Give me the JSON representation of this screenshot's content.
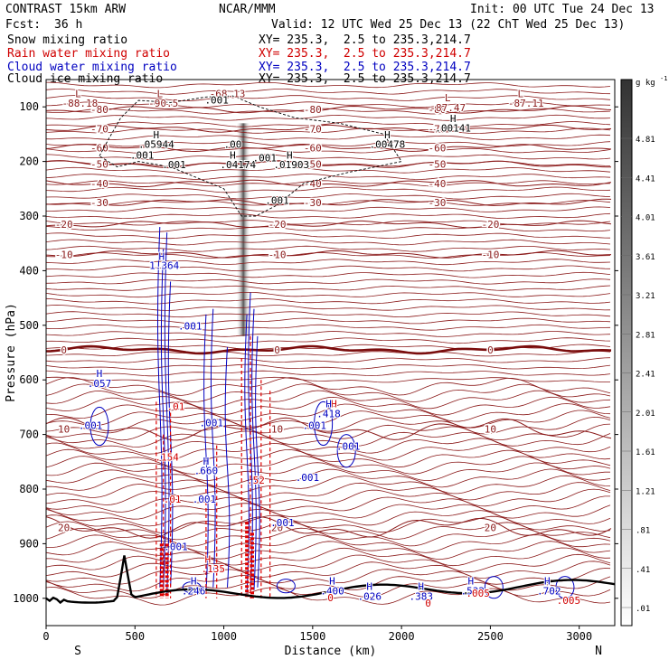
{
  "header": {
    "model": "CONTRAST 15km ARW",
    "org": "NCAR/MMM",
    "init": "Init: 00 UTC Tue 24 Dec 13",
    "fcst_label": "Fcst:",
    "fcst_value": "36 h",
    "valid": "Valid: 12 UTC Wed 25 Dec 13 (22 ChT Wed 25 Dec 13)",
    "fields": [
      {
        "name": "Snow mixing ratio",
        "xy": "XY= 235.3,  2.5 to 235.3,214.7",
        "color": "#000000"
      },
      {
        "name": "Rain water mixing ratio",
        "xy": "XY= 235.3,  2.5 to 235.3,214.7",
        "color": "#d00000"
      },
      {
        "name": "Cloud water mixing ratio",
        "xy": "XY= 235.3,  2.5 to 235.3,214.7",
        "color": "#0000c0"
      },
      {
        "name": "Cloud ice mixing ratio",
        "xy": "XY= 235.3,  2.5 to 235.3,214.7",
        "color": "#000000"
      }
    ]
  },
  "chart_data": {
    "type": "cross-section",
    "xlabel": "Distance (km)",
    "ylabel": "Pressure (hPa)",
    "xlim": [
      0,
      3200
    ],
    "ylim": [
      1050,
      50
    ],
    "x_ticks": [
      0,
      500,
      1000,
      1500,
      2000,
      2500,
      3000
    ],
    "y_ticks": [
      100,
      200,
      300,
      400,
      500,
      600,
      700,
      800,
      900,
      1000
    ],
    "x_end_labels": {
      "left": "S",
      "right": "N"
    },
    "colorbar": {
      "unit": "g kg",
      "unit_exp": "-1",
      "levels": [
        "4.81",
        "4.41",
        "4.01",
        "3.61",
        "3.21",
        "2.81",
        "2.41",
        "2.01",
        "1.61",
        "1.21",
        ".81",
        ".41",
        ".01"
      ]
    },
    "temperature_contours": [
      {
        "label": "-80",
        "p": 105
      },
      {
        "label": "-70",
        "p": 140
      },
      {
        "label": "-60",
        "p": 175
      },
      {
        "label": "-50",
        "p": 205
      },
      {
        "label": "-40",
        "p": 240
      },
      {
        "label": "-30",
        "p": 275
      },
      {
        "label": "-20",
        "p": 315
      },
      {
        "label": "-10",
        "p": 370
      },
      {
        "label": "0",
        "p": 545,
        "bold": true
      },
      {
        "label": "10",
        "p": 690
      },
      {
        "label": "20",
        "p": 870
      }
    ],
    "extrema_labels": [
      {
        "text": "L",
        "x": 180,
        "p": 82,
        "color": "#8b1a1a"
      },
      {
        "text": "-88.18",
        "x": 190,
        "p": 100,
        "color": "#8b1a1a"
      },
      {
        "text": "L",
        "x": 640,
        "p": 82,
        "color": "#8b1a1a"
      },
      {
        "text": "-90.5",
        "x": 660,
        "p": 100,
        "color": "#8b1a1a"
      },
      {
        "text": "-68.13",
        "x": 1020,
        "p": 82,
        "color": "#8b1a1a"
      },
      {
        "text": "L",
        "x": 2260,
        "p": 90,
        "color": "#8b1a1a"
      },
      {
        "text": "-87.47",
        "x": 2260,
        "p": 108,
        "color": "#8b1a1a"
      },
      {
        "text": "L",
        "x": 2670,
        "p": 82,
        "color": "#8b1a1a"
      },
      {
        "text": "-87.11",
        "x": 2700,
        "p": 100,
        "color": "#8b1a1a"
      },
      {
        "text": "H",
        "x": 620,
        "p": 158,
        "color": "#000000"
      },
      {
        "text": ".05944",
        "x": 620,
        "p": 175,
        "color": "#000000"
      },
      {
        "text": "H",
        "x": 1920,
        "p": 158,
        "color": "#000000"
      },
      {
        "text": ".00478",
        "x": 1920,
        "p": 175,
        "color": "#000000"
      },
      {
        "text": "H",
        "x": 2290,
        "p": 128,
        "color": "#000000"
      },
      {
        "text": ".00141",
        "x": 2290,
        "p": 145,
        "color": "#000000"
      },
      {
        "text": "H",
        "x": 1050,
        "p": 195,
        "color": "#000000"
      },
      {
        "text": ".04174",
        "x": 1080,
        "p": 212,
        "color": "#000000"
      },
      {
        "text": "H",
        "x": 1370,
        "p": 195,
        "color": "#000000"
      },
      {
        "text": ".01903",
        "x": 1380,
        "p": 212,
        "color": "#000000"
      },
      {
        "text": "H",
        "x": 650,
        "p": 380,
        "color": "#0000c0"
      },
      {
        "text": "1.364",
        "x": 665,
        "p": 397,
        "color": "#0000c0"
      },
      {
        "text": "H",
        "x": 300,
        "p": 595,
        "color": "#0000c0"
      },
      {
        "text": ".057",
        "x": 300,
        "p": 613,
        "color": "#0000c0"
      },
      {
        "text": "H",
        "x": 900,
        "p": 755,
        "color": "#0000c0"
      },
      {
        "text": ".660",
        "x": 900,
        "p": 773,
        "color": "#0000c0"
      },
      {
        "text": "H",
        "x": 1620,
        "p": 650,
        "color": "#d00000"
      },
      {
        "text": "H",
        "x": 1590,
        "p": 650,
        "color": "#0000c0"
      },
      {
        "text": ".418",
        "x": 1590,
        "p": 668,
        "color": "#0000c0"
      },
      {
        "text": "H",
        "x": 910,
        "p": 935,
        "color": "#d00000"
      },
      {
        "text": ".135",
        "x": 940,
        "p": 952,
        "color": "#d00000"
      },
      {
        "text": "H",
        "x": 830,
        "p": 975,
        "color": "#0000c0"
      },
      {
        "text": ".246",
        "x": 830,
        "p": 993,
        "color": "#0000c0"
      },
      {
        "text": "H",
        "x": 1610,
        "p": 975,
        "color": "#0000c0"
      },
      {
        "text": ".400",
        "x": 1610,
        "p": 993,
        "color": "#0000c0"
      },
      {
        "text": "H",
        "x": 1820,
        "p": 985,
        "color": "#0000c0"
      },
      {
        "text": ".026",
        "x": 1820,
        "p": 1003,
        "color": "#0000c0"
      },
      {
        "text": "H",
        "x": 2110,
        "p": 985,
        "color": "#0000c0"
      },
      {
        "text": ".383",
        "x": 2110,
        "p": 1003,
        "color": "#0000c0"
      },
      {
        "text": "H",
        "x": 2390,
        "p": 975,
        "color": "#0000c0"
      },
      {
        "text": ".532",
        "x": 2400,
        "p": 993,
        "color": "#0000c0"
      },
      {
        "text": "H",
        "x": 2820,
        "p": 975,
        "color": "#0000c0"
      },
      {
        "text": ".702",
        "x": 2830,
        "p": 993,
        "color": "#0000c0"
      },
      {
        "text": ".001",
        "x": 810,
        "p": 508,
        "color": "#0000c0"
      },
      {
        "text": ".001",
        "x": 250,
        "p": 690,
        "color": "#0000c0"
      },
      {
        "text": ".001",
        "x": 1510,
        "p": 690,
        "color": "#0000c0"
      },
      {
        "text": ".001",
        "x": 1700,
        "p": 728,
        "color": "#0000c0"
      },
      {
        "text": ".001",
        "x": 1470,
        "p": 785,
        "color": "#0000c0"
      },
      {
        "text": ".001",
        "x": 1330,
        "p": 868,
        "color": "#0000c0"
      },
      {
        "text": ".001",
        "x": 890,
        "p": 825,
        "color": "#0000c0"
      },
      {
        "text": ".001",
        "x": 930,
        "p": 685,
        "color": "#0000c0"
      },
      {
        "text": ".001",
        "x": 730,
        "p": 912,
        "color": "#0000c0"
      },
      {
        "text": ".001",
        "x": 540,
        "p": 195,
        "color": "#000000"
      },
      {
        "text": ".001",
        "x": 720,
        "p": 212,
        "color": "#000000"
      },
      {
        "text": ".001",
        "x": 1300,
        "p": 278,
        "color": "#000000"
      },
      {
        "text": ".001",
        "x": 1230,
        "p": 200,
        "color": "#000000"
      },
      {
        "text": ".001",
        "x": 960,
        "p": 94,
        "color": "#000000"
      },
      {
        "text": ".00",
        "x": 1050,
        "p": 175,
        "color": "#000000"
      },
      {
        "text": ".01",
        "x": 730,
        "p": 655,
        "color": "#d00000"
      },
      {
        "text": ".01",
        "x": 710,
        "p": 825,
        "color": "#d00000"
      },
      {
        "text": ".154",
        "x": 680,
        "p": 748,
        "color": "#d00000"
      },
      {
        "text": ".52",
        "x": 1180,
        "p": 790,
        "color": "#d00000"
      },
      {
        "text": "0",
        "x": 1600,
        "p": 1005,
        "color": "#d00000"
      },
      {
        "text": "0",
        "x": 2150,
        "p": 1015,
        "color": "#d00000"
      },
      {
        "text": ".005",
        "x": 2940,
        "p": 1010,
        "color": "#d00000"
      },
      {
        "text": ".005",
        "x": 2430,
        "p": 997,
        "color": "#d00000"
      }
    ]
  }
}
